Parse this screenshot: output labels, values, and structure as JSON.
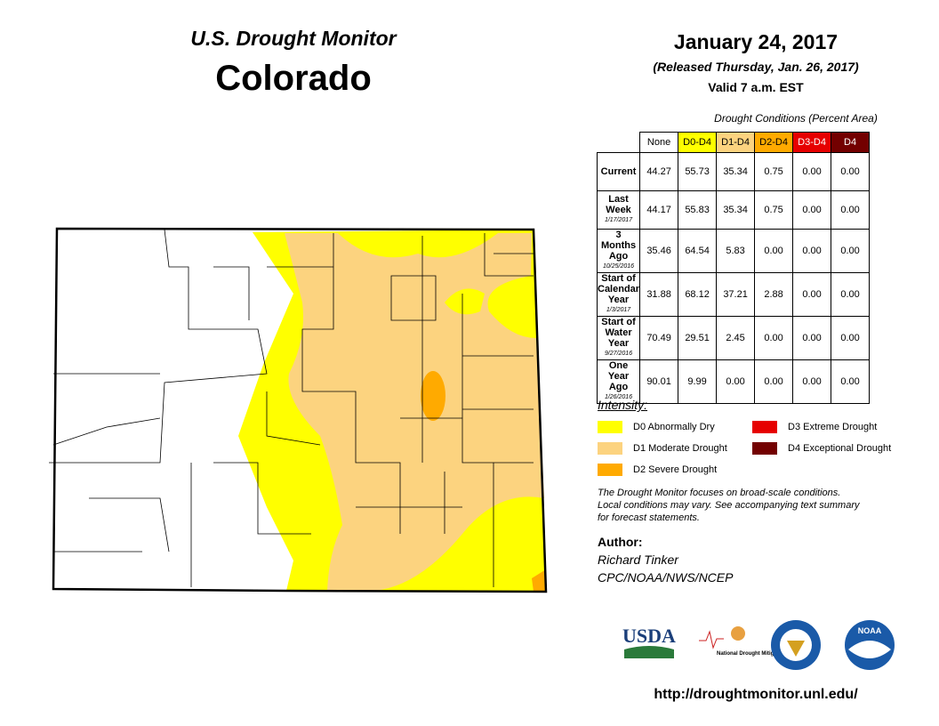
{
  "header": {
    "title": "U.S. Drought Monitor",
    "state": "Colorado",
    "date": "January 24, 2017",
    "released": "(Released Thursday, Jan. 26, 2017)",
    "valid": "Valid 7 a.m. EST"
  },
  "table": {
    "caption": "Drought Conditions (Percent Area)",
    "columns": [
      {
        "label": "None",
        "color": "#ffffff"
      },
      {
        "label": "D0-D4",
        "color": "#ffff00"
      },
      {
        "label": "D1-D4",
        "color": "#fcd37f"
      },
      {
        "label": "D2-D4",
        "color": "#ffaa00"
      },
      {
        "label": "D3-D4",
        "color": "#e60000"
      },
      {
        "label": "D4",
        "color": "#730000"
      }
    ],
    "rows": [
      {
        "label": "Current",
        "values": [
          "44.27",
          "55.73",
          "35.34",
          "0.75",
          "0.00",
          "0.00"
        ]
      },
      {
        "label": "Last Week",
        "date": "1/17/2017",
        "values": [
          "44.17",
          "55.83",
          "35.34",
          "0.75",
          "0.00",
          "0.00"
        ]
      },
      {
        "label": "3 Months Ago",
        "date": "10/25/2016",
        "values": [
          "35.46",
          "64.54",
          "5.83",
          "0.00",
          "0.00",
          "0.00"
        ]
      },
      {
        "label": "Start of Calendar Year",
        "date": "1/3/2017",
        "values": [
          "31.88",
          "68.12",
          "37.21",
          "2.88",
          "0.00",
          "0.00"
        ]
      },
      {
        "label": "Start of Water Year",
        "date": "9/27/2016",
        "values": [
          "70.49",
          "29.51",
          "2.45",
          "0.00",
          "0.00",
          "0.00"
        ]
      },
      {
        "label": "One Year Ago",
        "date": "1/26/2016",
        "values": [
          "90.01",
          "9.99",
          "0.00",
          "0.00",
          "0.00",
          "0.00"
        ]
      }
    ]
  },
  "legend": {
    "title": "Intensity:",
    "items": [
      {
        "label": "D0 Abnormally Dry",
        "color": "#ffff00"
      },
      {
        "label": "D1 Moderate Drought",
        "color": "#fcd37f"
      },
      {
        "label": "D2 Severe Drought",
        "color": "#ffaa00"
      },
      {
        "label": "D3 Extreme Drought",
        "color": "#e60000"
      },
      {
        "label": "D4 Exceptional Drought",
        "color": "#730000"
      }
    ]
  },
  "note": [
    "The Drought Monitor focuses on broad-scale conditions.",
    "Local conditions may vary. See accompanying text summary",
    "for forecast statements."
  ],
  "author": {
    "label": "Author:",
    "name": "Richard Tinker",
    "org": "CPC/NOAA/NWS/NCEP"
  },
  "logos": {
    "usda": "USDA",
    "ndmc": "National Drought Mitigation Center",
    "noaa": "NOAA"
  },
  "url": "http://droughtmonitor.unl.edu/"
}
